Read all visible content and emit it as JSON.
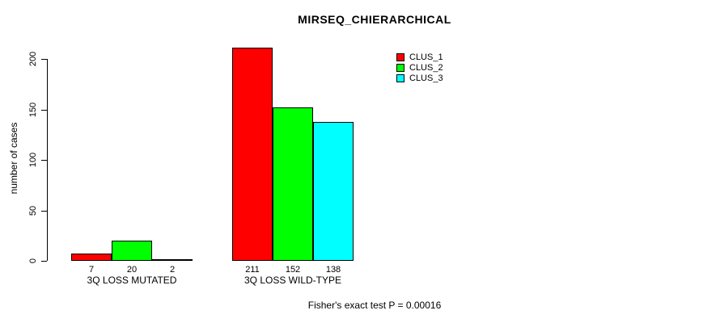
{
  "title": "MIRSEQ_CHIERARCHICAL",
  "footer": "Fisher's exact test P = 0.00016",
  "colors": {
    "background": "#ffffff",
    "axis": "#000000",
    "clus_1": "#ff0000",
    "clus_2": "#00ff00",
    "clus_3": "#00ffff"
  },
  "chart_data": {
    "type": "bar",
    "title": "MIRSEQ_CHIERARCHICAL",
    "xlabel": "",
    "ylabel": "number of cases",
    "categories": [
      "3Q LOSS MUTATED",
      "3Q LOSS WILD-TYPE"
    ],
    "series": [
      {
        "name": "CLUS_1",
        "color": "#ff0000",
        "values": [
          7,
          211
        ]
      },
      {
        "name": "CLUS_2",
        "color": "#00ff00",
        "values": [
          20,
          152
        ]
      },
      {
        "name": "CLUS_3",
        "color": "#00ffff",
        "values": [
          2,
          138
        ]
      }
    ],
    "value_labels": [
      [
        "7",
        "20",
        "2"
      ],
      [
        "211",
        "152",
        "138"
      ]
    ],
    "yticks": [
      0,
      50,
      100,
      150,
      200
    ],
    "ylim": [
      0,
      211
    ],
    "grid": false,
    "legend_position": "top-right",
    "annotation": "Fisher's exact test P = 0.00016"
  }
}
